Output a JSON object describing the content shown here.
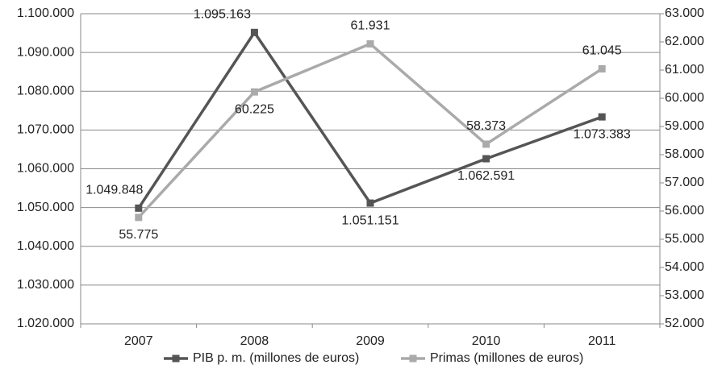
{
  "chart_data": {
    "type": "line",
    "categories": [
      "2007",
      "2008",
      "2009",
      "2010",
      "2011"
    ],
    "series": [
      {
        "name": "PIB p. m. (millones de euros)",
        "color": "#555555",
        "axis": "y",
        "values": [
          1049848,
          1095163,
          1051151,
          1062591,
          1073383
        ],
        "value_labels": [
          "1.049.848",
          "1.095.163",
          "1.051.151",
          "1.062.591",
          "1.073.383"
        ]
      },
      {
        "name": "Primas (millones de euros)",
        "color": "#aaaaaa",
        "axis": "y2",
        "values": [
          55775,
          60225,
          61931,
          58373,
          61045
        ],
        "value_labels": [
          "55.775",
          "60.225",
          "61.931",
          "58.373",
          "61.045"
        ]
      }
    ],
    "ylim": [
      1020000,
      1100000
    ],
    "yticks": [
      {
        "value": 1020000,
        "label": "1.020.000"
      },
      {
        "value": 1030000,
        "label": "1.030.000"
      },
      {
        "value": 1040000,
        "label": "1.040.000"
      },
      {
        "value": 1050000,
        "label": "1.050.000"
      },
      {
        "value": 1060000,
        "label": "1.060.000"
      },
      {
        "value": 1070000,
        "label": "1.070.000"
      },
      {
        "value": 1080000,
        "label": "1.080.000"
      },
      {
        "value": 1090000,
        "label": "1.090.000"
      },
      {
        "value": 1100000,
        "label": "1.100.000"
      }
    ],
    "y2lim": [
      52000,
      63000
    ],
    "y2ticks": [
      {
        "value": 52000,
        "label": "52.000"
      },
      {
        "value": 53000,
        "label": "53.000"
      },
      {
        "value": 54000,
        "label": "54.000"
      },
      {
        "value": 55000,
        "label": "55.000"
      },
      {
        "value": 56000,
        "label": "56.000"
      },
      {
        "value": 57000,
        "label": "57.000"
      },
      {
        "value": 58000,
        "label": "58.000"
      },
      {
        "value": 59000,
        "label": "59.000"
      },
      {
        "value": 60000,
        "label": "60.000"
      },
      {
        "value": 61000,
        "label": "61.000"
      },
      {
        "value": 62000,
        "label": "62.000"
      },
      {
        "value": 63000,
        "label": "63.000"
      }
    ],
    "grid": true,
    "legend": "bottom"
  }
}
